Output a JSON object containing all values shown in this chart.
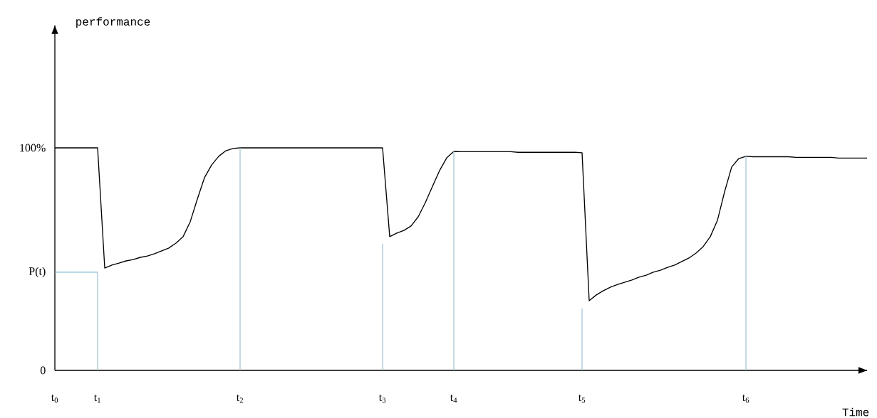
{
  "chart_data": {
    "type": "line",
    "xlabel": "Time",
    "ylabel": "performance",
    "ylim": [
      0,
      155
    ],
    "yticks": [
      0,
      {
        "value": 44.1,
        "label": "P(t)"
      },
      {
        "value": 100,
        "label": "100%"
      }
    ],
    "categories": [
      "t$_{0}$",
      null,
      null,
      null,
      null,
      null,
      "t$_{1}$",
      null,
      null,
      null,
      null,
      null,
      null,
      null,
      null,
      null,
      null,
      null,
      null,
      null,
      null,
      null,
      null,
      null,
      null,
      null,
      "t$_{2}$",
      null,
      null,
      null,
      null,
      null,
      null,
      null,
      null,
      null,
      null,
      null,
      null,
      null,
      null,
      null,
      null,
      null,
      null,
      null,
      "t$_{3}$",
      null,
      null,
      null,
      null,
      null,
      null,
      null,
      null,
      null,
      "t$_{4}$",
      null,
      null,
      null,
      null,
      null,
      null,
      null,
      null,
      null,
      null,
      null,
      null,
      null,
      null,
      null,
      null,
      null,
      "t$_{5}$",
      null,
      null,
      null,
      null,
      null,
      null,
      null,
      null,
      null,
      null,
      null,
      null,
      null,
      null,
      null,
      null,
      null,
      null,
      null,
      null,
      null,
      null,
      "t$_{6}$",
      null,
      null,
      null,
      null,
      null,
      null,
      null,
      null,
      null,
      null,
      null,
      null,
      null,
      null,
      null,
      null,
      null
    ],
    "series": [
      {
        "color": "#000000",
        "values": [
          100,
          100,
          100,
          100,
          100,
          100,
          100,
          46.0,
          47.3,
          48.2,
          49.2,
          49.8,
          50.8,
          51.4,
          52.4,
          53.7,
          55.0,
          57.2,
          60.1,
          66.8,
          77.0,
          86.6,
          92.3,
          96.2,
          98.7,
          99.7,
          100,
          100,
          100,
          100,
          100,
          100,
          100,
          100,
          100,
          100,
          100,
          100,
          100,
          100,
          100,
          100,
          100,
          100,
          100,
          100,
          100,
          60.1,
          61.7,
          62.9,
          64.9,
          69.0,
          75.4,
          82.7,
          89.8,
          95.5,
          98.4,
          98.3,
          98.3,
          98.3,
          98.3,
          98.3,
          98.3,
          98.3,
          98.3,
          98.0,
          98.0,
          98.0,
          98.0,
          98.0,
          98.0,
          98.0,
          98.0,
          98.0,
          97.8,
          31.3,
          33.9,
          35.8,
          37.4,
          38.6,
          39.6,
          40.6,
          41.9,
          42.8,
          44.1,
          45.0,
          46.3,
          47.3,
          48.9,
          50.5,
          52.7,
          55.6,
          60.1,
          67.4,
          80.2,
          91.4,
          95.2,
          96.2,
          96.0,
          96.0,
          96.0,
          96.0,
          96.0,
          96.0,
          95.7,
          95.7,
          95.7,
          95.7,
          95.7,
          95.7,
          95.4,
          95.4,
          95.4,
          95.4,
          95.4
        ]
      },
      {
        "color": "#7fbcd2",
        "values": [
          44.1,
          44.1,
          44.1,
          44.1,
          44.1,
          44.1,
          44.1,
          null,
          null,
          null,
          null,
          null,
          null,
          null,
          null,
          null,
          null,
          null,
          null,
          null,
          null,
          null,
          null,
          null,
          null,
          null,
          null,
          null,
          null,
          null,
          null,
          null,
          null,
          null,
          null,
          null,
          null,
          null,
          null,
          null,
          null,
          null,
          null,
          null,
          null,
          null,
          null,
          null,
          null,
          null,
          null,
          null,
          null,
          null,
          null,
          null,
          null,
          null,
          null,
          null,
          null,
          null,
          null,
          null,
          null,
          null,
          null,
          null,
          null,
          null,
          null,
          null,
          null,
          null,
          null,
          null,
          null,
          null,
          null,
          null,
          null,
          null,
          null,
          null,
          null,
          null,
          null,
          null,
          null,
          null,
          null,
          null,
          null,
          null,
          null,
          null,
          null,
          null,
          null,
          null,
          null,
          null,
          null,
          null,
          null,
          null,
          null,
          null,
          null,
          null,
          null,
          null,
          null,
          null,
          null
        ]
      },
      {
        "type": "bar",
        "color": "#a9c6d6",
        "values": [
          null,
          null,
          null,
          null,
          null,
          null,
          44.1,
          null,
          null,
          null,
          null,
          null,
          null,
          null,
          null,
          null,
          null,
          null,
          null,
          null,
          null,
          null,
          null,
          null,
          null,
          null,
          100,
          null,
          null,
          null,
          null,
          null,
          null,
          null,
          null,
          null,
          null,
          null,
          null,
          null,
          null,
          null,
          null,
          null,
          null,
          null,
          56.9,
          null,
          null,
          null,
          null,
          null,
          null,
          null,
          null,
          null,
          98.4,
          null,
          null,
          null,
          null,
          null,
          null,
          null,
          null,
          null,
          null,
          null,
          null,
          null,
          null,
          null,
          null,
          null,
          27.8,
          null,
          null,
          null,
          null,
          null,
          null,
          null,
          null,
          null,
          null,
          null,
          null,
          null,
          null,
          null,
          null,
          null,
          null,
          null,
          null,
          null,
          null,
          96.2,
          null,
          null,
          null,
          null,
          null,
          null,
          null,
          null,
          null,
          null,
          null,
          null,
          null,
          null,
          null,
          null,
          null
        ]
      }
    ]
  }
}
